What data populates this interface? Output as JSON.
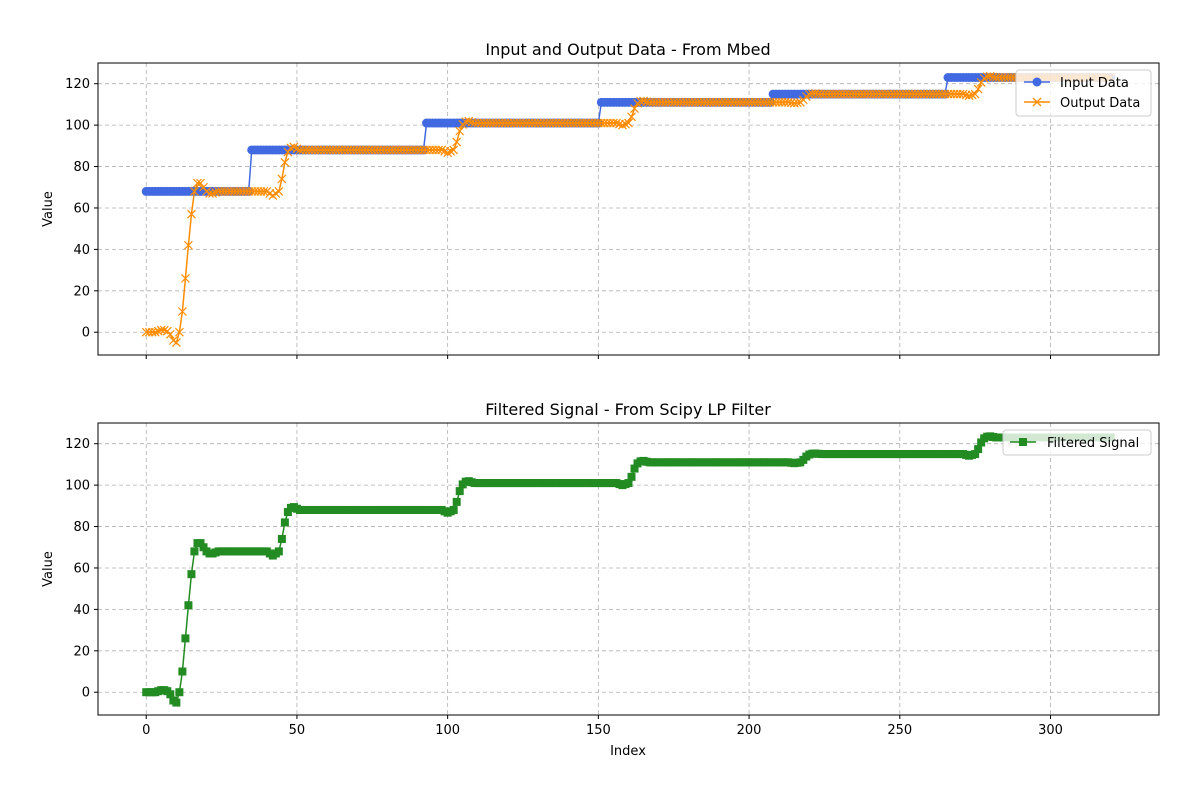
{
  "chart_data": [
    {
      "type": "line",
      "title": "Input and Output Data - From Mbed",
      "xlabel": "",
      "ylabel": "Value",
      "xlim": [
        -16,
        336
      ],
      "ylim": [
        -11,
        130
      ],
      "xticks": [
        0,
        50,
        100,
        150,
        200,
        250,
        300
      ],
      "yticks": [
        0,
        20,
        40,
        60,
        80,
        100,
        120
      ],
      "show_xtick_labels": false,
      "grid": true,
      "legend_position": "top-right",
      "series": [
        {
          "name": "Input Data",
          "color": "#4169e1",
          "marker": "circle",
          "steps": [
            {
              "x_start": 0,
              "x_end": 34,
              "y": 68
            },
            {
              "x_start": 35,
              "x_end": 92,
              "y": 88
            },
            {
              "x_start": 93,
              "x_end": 150,
              "y": 101
            },
            {
              "x_start": 151,
              "x_end": 207,
              "y": 111
            },
            {
              "x_start": 208,
              "x_end": 265,
              "y": 115
            },
            {
              "x_start": 266,
              "x_end": 320,
              "y": 123
            }
          ]
        },
        {
          "name": "Output Data",
          "color": "#ff8c00",
          "marker": "x",
          "transient": [
            [
              0,
              0
            ],
            [
              1,
              0
            ],
            [
              2,
              0
            ],
            [
              3,
              0
            ],
            [
              4,
              0.5
            ],
            [
              5,
              1
            ],
            [
              6,
              1
            ],
            [
              7,
              0.5
            ],
            [
              8,
              -1
            ],
            [
              9,
              -4
            ],
            [
              10,
              -5
            ],
            [
              11,
              0
            ],
            [
              12,
              10
            ],
            [
              13,
              26
            ],
            [
              14,
              42
            ],
            [
              15,
              57
            ],
            [
              16,
              68
            ],
            [
              17,
              72
            ],
            [
              18,
              72
            ],
            [
              19,
              70
            ],
            [
              20,
              68
            ],
            [
              21,
              67
            ],
            [
              22,
              67
            ],
            [
              23,
              67.5
            ],
            [
              24,
              68
            ],
            [
              25,
              68
            ]
          ],
          "step_responses": [
            {
              "x0": 35,
              "from": 68,
              "to": 88
            },
            {
              "x0": 93,
              "from": 88,
              "to": 101
            },
            {
              "x0": 151,
              "from": 101,
              "to": 111
            },
            {
              "x0": 208,
              "from": 111,
              "to": 115
            },
            {
              "x0": 266,
              "from": 115,
              "to": 123
            }
          ],
          "x_end": 320
        }
      ]
    },
    {
      "type": "line",
      "title": "Filtered Signal - From Scipy LP Filter",
      "xlabel": "Index",
      "ylabel": "Value",
      "xlim": [
        -16,
        336
      ],
      "ylim": [
        -11,
        130
      ],
      "xticks": [
        0,
        50,
        100,
        150,
        200,
        250,
        300
      ],
      "yticks": [
        0,
        20,
        40,
        60,
        80,
        100,
        120
      ],
      "show_xtick_labels": true,
      "grid": true,
      "legend_position": "top-right",
      "series": [
        {
          "name": "Filtered Signal",
          "color": "#228b22",
          "marker": "square",
          "same_as": "Output Data"
        }
      ]
    }
  ]
}
